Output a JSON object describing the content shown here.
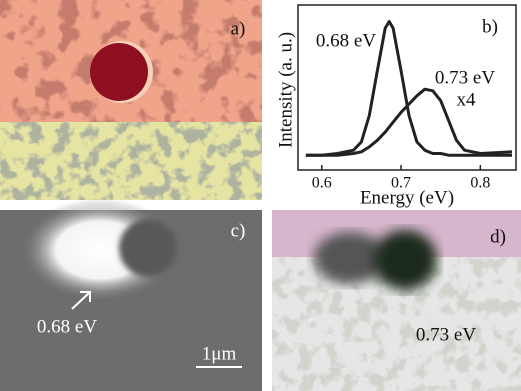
{
  "panels": {
    "a": {
      "label": "a)"
    },
    "c": {
      "label": "c)",
      "annotation": "0.68 eV",
      "scale_bar": "1μm"
    },
    "d": {
      "label": "d)",
      "annotation": "0.73 eV"
    }
  },
  "chart_data": {
    "type": "line",
    "label": "b)",
    "xlabel": "Energy (eV)",
    "ylabel": "Intensity (a. u.)",
    "x": [
      0.58,
      0.6,
      0.62,
      0.64,
      0.65,
      0.66,
      0.67,
      0.68,
      0.685,
      0.69,
      0.7,
      0.71,
      0.72,
      0.73,
      0.74,
      0.75,
      0.76,
      0.77,
      0.78,
      0.8,
      0.84
    ],
    "series": [
      {
        "name": "0.68 eV",
        "color": "#222222",
        "values": [
          0.09,
          0.09,
          0.1,
          0.12,
          0.17,
          0.33,
          0.6,
          0.86,
          0.9,
          0.86,
          0.6,
          0.33,
          0.17,
          0.12,
          0.1,
          0.1,
          0.09,
          0.09,
          0.09,
          0.09,
          0.09
        ]
      },
      {
        "name": "0.73 eV",
        "color": "#222222",
        "values": [
          0.09,
          0.09,
          0.09,
          0.1,
          0.11,
          0.14,
          0.18,
          0.23,
          0.26,
          0.29,
          0.35,
          0.4,
          0.45,
          0.49,
          0.48,
          0.42,
          0.3,
          0.18,
          0.12,
          0.1,
          0.11
        ]
      }
    ],
    "annotations": [
      "x4"
    ],
    "xlim": [
      0.57,
      0.845
    ],
    "xticks": [
      0.6,
      0.7,
      0.8
    ],
    "ylim": [
      0,
      1
    ]
  }
}
